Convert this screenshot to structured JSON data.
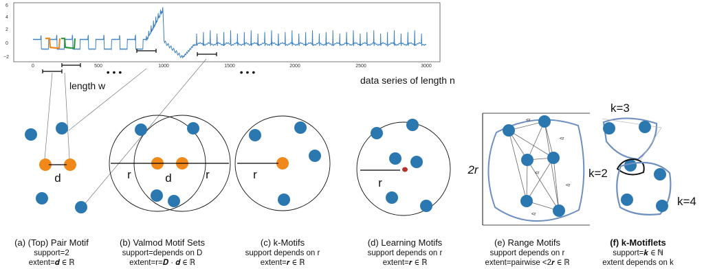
{
  "chart": {
    "y_ticks": [
      "6",
      "4",
      "2",
      "0",
      "−2"
    ],
    "x_ticks": [
      "0",
      "500",
      "1000",
      "1500",
      "2000",
      "2500",
      "3000"
    ],
    "ellipsis": "• • •",
    "length_label": "length w",
    "series_label": "data series of length n"
  },
  "panels": [
    {
      "caption": "(a) (Top) Pair Motif",
      "line1": "support=2",
      "line2": "extent=𝒅 ∈ ℝ",
      "labels": [
        "d"
      ]
    },
    {
      "caption": "(b) Valmod Motif Sets",
      "line1": "support=depends on D",
      "line2": "extent=r=𝑫 · 𝒅 ∈ ℝ",
      "labels": [
        "r",
        "d",
        "r"
      ]
    },
    {
      "caption": "(c) k-Motifs",
      "line1": "support depends on r",
      "line2": "extent=𝒓 ∈ ℝ",
      "labels": [
        "r"
      ]
    },
    {
      "caption": "(d) Learning Motifs",
      "line1": "support depends on r",
      "line2": "extent=𝒓 ∈ ℝ",
      "labels": [
        "r"
      ]
    },
    {
      "caption": "(e) Range Motifs",
      "line1": "support depends on r",
      "line2": "extent=pairwise <2𝒓 ∈ ℝ",
      "labels": [
        "2r",
        "<r"
      ]
    },
    {
      "caption": "(f) k-Motiflets",
      "line1": "support=𝒌 ∈ ℕ",
      "line2": "extent depends on k",
      "labels": [
        "k=3",
        "k=2",
        "k=4"
      ]
    }
  ],
  "colors": {
    "series": "#3a7fc0",
    "motif_orange": "#f0891a",
    "motif_green": "#2e9a3c",
    "point_blue": "#2b78b0",
    "point_red": "#b3322a"
  }
}
